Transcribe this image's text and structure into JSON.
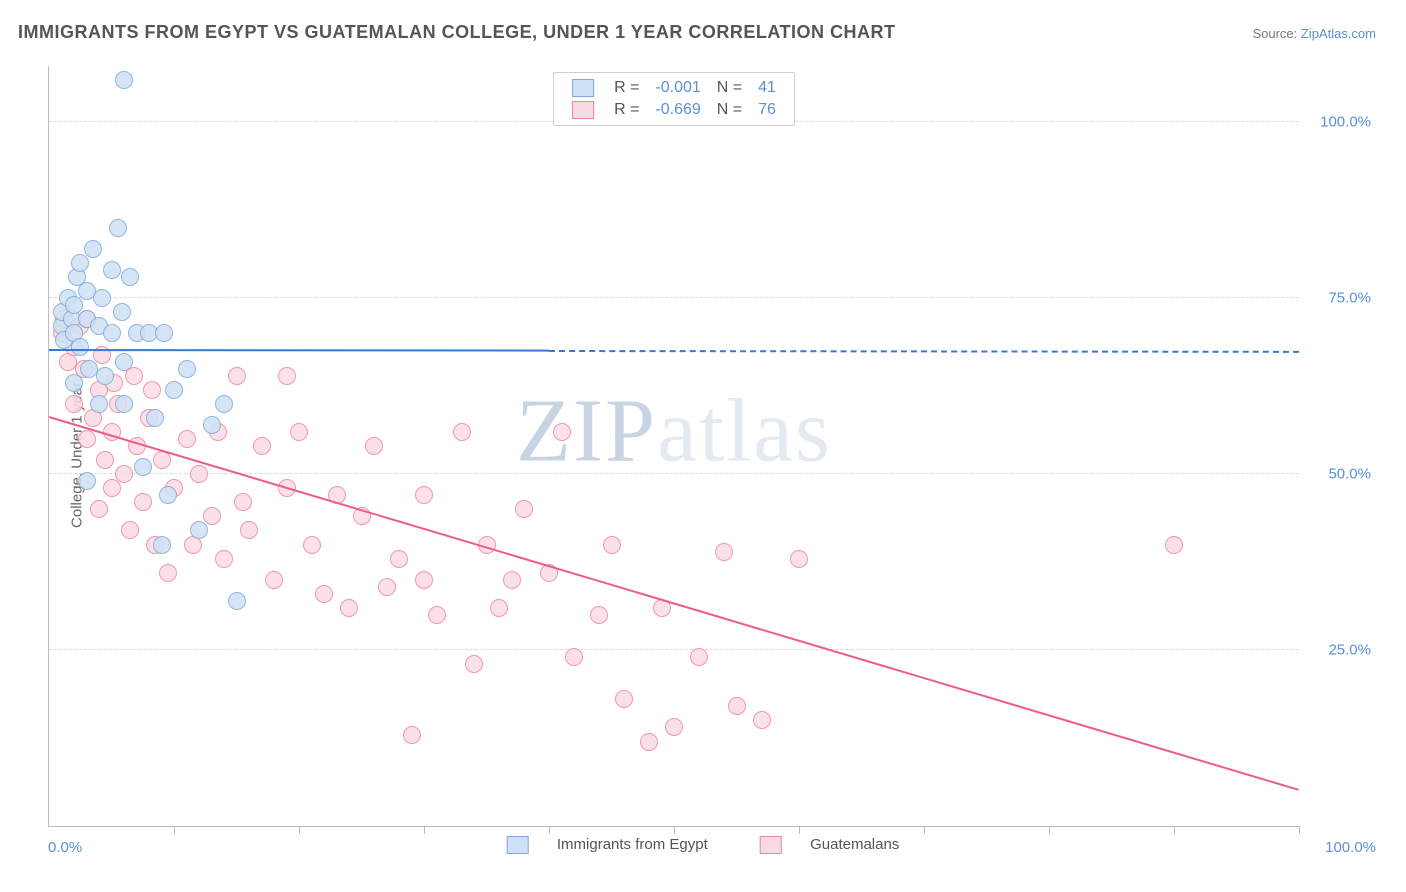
{
  "title": "IMMIGRANTS FROM EGYPT VS GUATEMALAN COLLEGE, UNDER 1 YEAR CORRELATION CHART",
  "source_label": "Source: ",
  "source_link_text": "ZipAtlas.com",
  "ylabel": "College, Under 1 year",
  "watermark_a": "ZIP",
  "watermark_b": "atlas",
  "chart": {
    "type": "scatter",
    "xlim": [
      0,
      100
    ],
    "ylim": [
      0,
      108
    ],
    "xtick_positions": [
      0,
      10,
      20,
      30,
      40,
      50,
      60,
      70,
      80,
      90,
      100
    ],
    "yticks": [
      25,
      50,
      75,
      100
    ],
    "ytick_labels": [
      "25.0%",
      "50.0%",
      "75.0%",
      "100.0%"
    ],
    "x_min_label": "0.0%",
    "x_max_label": "100.0%",
    "grid_color": "#d9d9d9",
    "axis_color": "#bbbbbb",
    "series": [
      {
        "name": "Immigrants from Egypt",
        "color_fill": "#cfe1f5",
        "color_stroke": "#7ea9d8",
        "marker_radius": 9,
        "stroke_width": 1.5,
        "R": "-0.001",
        "N": "41",
        "legend_label": "Immigrants from Egypt",
        "trend": {
          "x0": 0,
          "y0": 67.5,
          "x1": 100,
          "y1": 67.3,
          "solid_until_x": 40,
          "width": 2.5,
          "color": "#3878d4"
        },
        "points": [
          [
            1,
            71
          ],
          [
            1,
            73
          ],
          [
            1.2,
            69
          ],
          [
            1.5,
            75
          ],
          [
            1.8,
            72
          ],
          [
            2,
            70
          ],
          [
            2,
            74
          ],
          [
            2.2,
            78
          ],
          [
            2.5,
            68
          ],
          [
            2.5,
            80
          ],
          [
            3,
            72
          ],
          [
            3,
            76
          ],
          [
            3.2,
            65
          ],
          [
            3.5,
            82
          ],
          [
            4,
            71
          ],
          [
            4,
            60
          ],
          [
            4.2,
            75
          ],
          [
            4.5,
            64
          ],
          [
            5,
            79
          ],
          [
            5,
            70
          ],
          [
            5.5,
            85
          ],
          [
            5.8,
            73
          ],
          [
            6,
            66
          ],
          [
            6,
            60
          ],
          [
            6.5,
            78
          ],
          [
            7,
            70
          ],
          [
            7.5,
            51
          ],
          [
            8,
            70
          ],
          [
            8.5,
            58
          ],
          [
            9,
            40
          ],
          [
            9.2,
            70
          ],
          [
            9.5,
            47
          ],
          [
            10,
            62
          ],
          [
            11,
            65
          ],
          [
            12,
            42
          ],
          [
            13,
            57
          ],
          [
            14,
            60
          ],
          [
            15,
            32
          ],
          [
            6,
            106
          ],
          [
            3,
            49
          ],
          [
            2,
            63
          ]
        ]
      },
      {
        "name": "Guatemalans",
        "color_fill": "#fbdbe3",
        "color_stroke": "#ec87a2",
        "marker_radius": 9,
        "stroke_width": 1.5,
        "R": "-0.669",
        "N": "76",
        "legend_label": "Guatemalans",
        "trend": {
          "x0": 0,
          "y0": 58,
          "x1": 100,
          "y1": 5,
          "solid_until_x": 100,
          "width": 2.5,
          "color": "#ec5e85"
        },
        "points": [
          [
            1,
            70
          ],
          [
            1.5,
            66
          ],
          [
            2,
            68
          ],
          [
            2,
            60
          ],
          [
            2.5,
            71
          ],
          [
            3,
            55
          ],
          [
            3.5,
            58
          ],
          [
            4,
            62
          ],
          [
            4,
            45
          ],
          [
            4.5,
            52
          ],
          [
            5,
            56
          ],
          [
            5,
            48
          ],
          [
            5.5,
            60
          ],
          [
            6,
            50
          ],
          [
            6.5,
            42
          ],
          [
            7,
            54
          ],
          [
            7.5,
            46
          ],
          [
            8,
            58
          ],
          [
            8.5,
            40
          ],
          [
            9,
            52
          ],
          [
            9.5,
            36
          ],
          [
            10,
            48
          ],
          [
            11,
            55
          ],
          [
            11.5,
            40
          ],
          [
            12,
            50
          ],
          [
            13,
            44
          ],
          [
            13.5,
            56
          ],
          [
            14,
            38
          ],
          [
            15,
            64
          ],
          [
            15.5,
            46
          ],
          [
            16,
            42
          ],
          [
            17,
            54
          ],
          [
            18,
            35
          ],
          [
            19,
            48
          ],
          [
            20,
            56
          ],
          [
            21,
            40
          ],
          [
            22,
            33
          ],
          [
            23,
            47
          ],
          [
            24,
            31
          ],
          [
            25,
            44
          ],
          [
            26,
            54
          ],
          [
            27,
            34
          ],
          [
            28,
            38
          ],
          [
            29,
            13
          ],
          [
            30,
            47
          ],
          [
            31,
            30
          ],
          [
            33,
            56
          ],
          [
            34,
            23
          ],
          [
            35,
            40
          ],
          [
            36,
            31
          ],
          [
            38,
            45
          ],
          [
            40,
            36
          ],
          [
            41,
            56
          ],
          [
            42,
            24
          ],
          [
            44,
            30
          ],
          [
            45,
            40
          ],
          [
            46,
            18
          ],
          [
            48,
            12
          ],
          [
            49,
            31
          ],
          [
            50,
            14
          ],
          [
            52,
            24
          ],
          [
            54,
            39
          ],
          [
            55,
            17
          ],
          [
            57,
            15
          ],
          [
            60,
            38
          ],
          [
            1.2,
            72
          ],
          [
            90,
            40
          ],
          [
            3,
            72
          ],
          [
            4.2,
            67
          ],
          [
            19,
            64
          ],
          [
            30,
            35
          ],
          [
            37,
            35
          ],
          [
            5.2,
            63
          ],
          [
            6.8,
            64
          ],
          [
            8.2,
            62
          ],
          [
            2.8,
            65
          ]
        ]
      }
    ]
  }
}
